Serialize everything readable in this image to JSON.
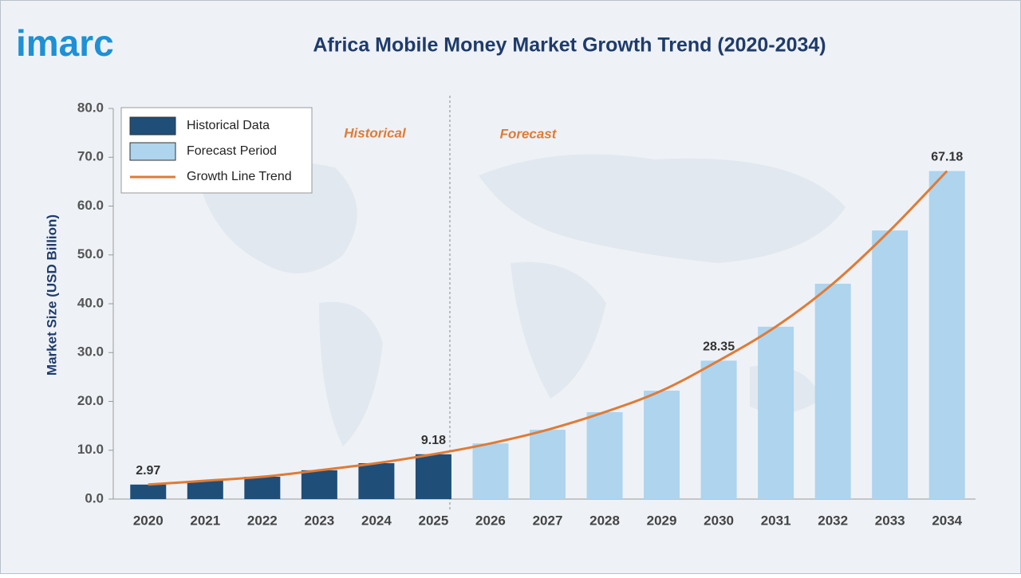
{
  "logo": "imarc",
  "chart_data": {
    "type": "bar",
    "title": "Africa Mobile Money Market Growth Trend (2020-2034)",
    "y_label": "Market Size (USD Billion)",
    "annotations": [
      "Historical",
      "Forecast"
    ],
    "categories": [
      "2020",
      "2021",
      "2022",
      "2023",
      "2024",
      "2025",
      "2026",
      "2027",
      "2028",
      "2029",
      "2030",
      "2031",
      "2032",
      "2033",
      "2034"
    ],
    "series": [
      {
        "name": "Historical Data",
        "color": "#1f4e79",
        "type": "bar",
        "values": [
          2.97,
          3.75,
          4.57,
          5.9,
          7.35,
          9.18,
          null,
          null,
          null,
          null,
          null,
          null,
          null,
          null,
          null
        ],
        "value_labels": [
          "2.97",
          null,
          null,
          null,
          null,
          "9.18",
          null,
          null,
          null,
          null,
          null,
          null,
          null,
          null,
          null
        ]
      },
      {
        "name": "Forecast Period",
        "color": "#aed4ee",
        "type": "bar",
        "values": [
          null,
          null,
          null,
          null,
          null,
          null,
          11.4,
          14.2,
          17.8,
          22.2,
          28.35,
          35.3,
          44.1,
          55.0,
          67.18
        ],
        "value_labels": [
          null,
          null,
          null,
          null,
          null,
          null,
          null,
          null,
          null,
          null,
          "28.35",
          null,
          null,
          null,
          "67.18"
        ]
      },
      {
        "name": "Growth Line Trend",
        "color": "#e07b35",
        "type": "line",
        "values": [
          2.97,
          3.75,
          4.57,
          5.9,
          7.35,
          9.18,
          11.4,
          14.2,
          17.8,
          22.2,
          28.35,
          35.3,
          44.1,
          55.0,
          67.18
        ]
      }
    ],
    "ylim": [
      0,
      80
    ],
    "yticks": [
      {
        "value": 0,
        "label": "0.0"
      },
      {
        "value": 10,
        "label": "10.0"
      },
      {
        "value": 20,
        "label": "20.0"
      },
      {
        "value": 30,
        "label": "30.0"
      },
      {
        "value": 40,
        "label": "40.0"
      },
      {
        "value": 50,
        "label": "50.0"
      },
      {
        "value": 60,
        "label": "60.0"
      },
      {
        "value": 70,
        "label": "70.0"
      },
      {
        "value": 80,
        "label": "80.0"
      }
    ],
    "grid": false,
    "legend": "top-left"
  }
}
